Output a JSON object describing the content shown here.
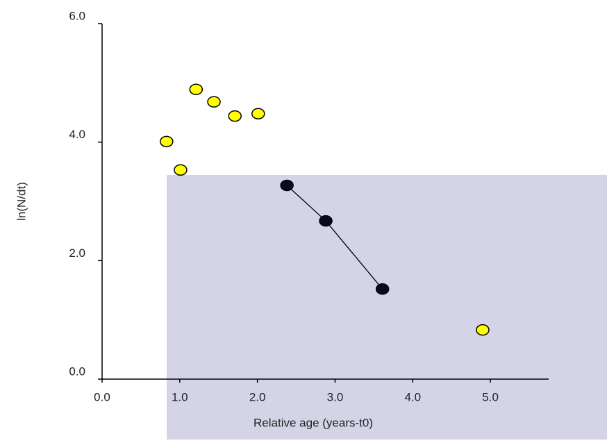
{
  "chart_data": {
    "type": "scatter",
    "x_label": "Relative age (years-t0)",
    "y_label": "ln(N/dt)",
    "xlim": [
      0,
      5.75
    ],
    "ylim": [
      0,
      6
    ],
    "xticks": [
      {
        "value": 0,
        "label": "0.0"
      },
      {
        "value": 1,
        "label": "1.0"
      },
      {
        "value": 2,
        "label": "2.0"
      },
      {
        "value": 3,
        "label": "3.0"
      },
      {
        "value": 4,
        "label": "4.0"
      },
      {
        "value": 5,
        "label": "5.0"
      }
    ],
    "yticks": [
      {
        "value": 0,
        "label": "0.0"
      },
      {
        "value": 2,
        "label": "2.0"
      },
      {
        "value": 4,
        "label": "4.0"
      },
      {
        "value": 6,
        "label": "6.0"
      }
    ],
    "series": [
      {
        "color": "#ffff00",
        "line": false,
        "x": [
          0.83,
          1.01,
          1.21,
          1.44,
          1.71,
          2.01,
          4.9
        ],
        "values": [
          4.01,
          3.53,
          4.89,
          4.68,
          4.44,
          4.48,
          0.83
        ]
      },
      {
        "color": "#0a0a1e",
        "line": true,
        "x": [
          2.38,
          2.88,
          3.61
        ],
        "values": [
          3.27,
          2.67,
          1.52
        ]
      }
    ]
  }
}
